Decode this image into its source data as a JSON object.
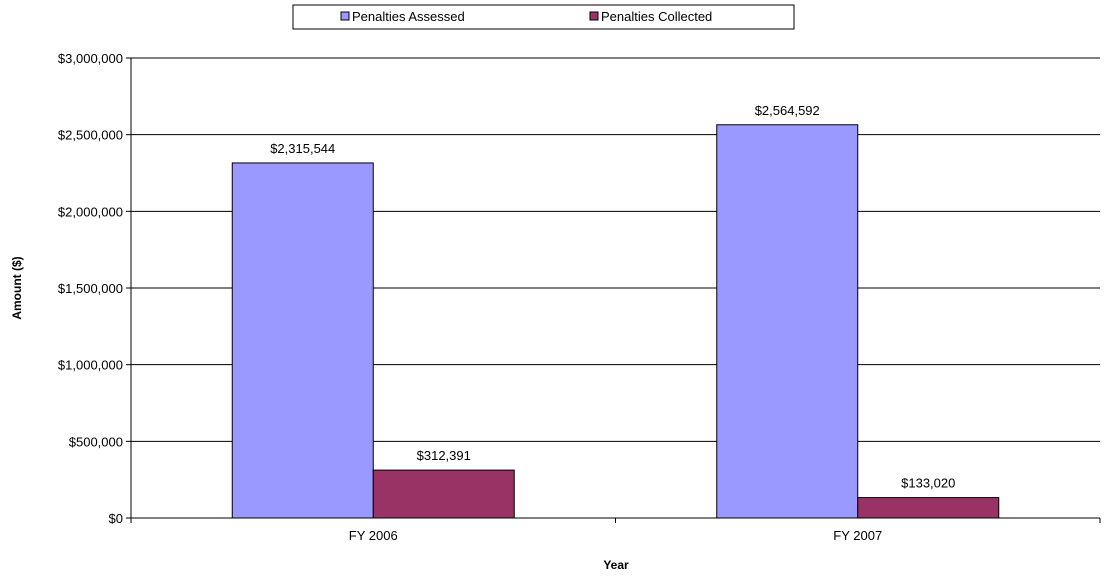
{
  "chart_data": {
    "type": "bar",
    "categories": [
      "FY 2006",
      "FY 2007"
    ],
    "series": [
      {
        "name": "Penalties Assessed",
        "values": [
          2315544,
          2564592
        ],
        "labels": [
          "$2,315,544",
          "$2,564,592"
        ],
        "color": "#9999ff"
      },
      {
        "name": "Penalties Collected",
        "values": [
          312391,
          133020
        ],
        "labels": [
          "$312,391",
          "$133,020"
        ],
        "color": "#993366"
      }
    ],
    "xlabel": "Year",
    "ylabel": "Amount ($)",
    "ylim": [
      0,
      3000000
    ],
    "yticks": [
      0,
      500000,
      1000000,
      1500000,
      2000000,
      2500000,
      3000000
    ],
    "ytick_labels": [
      "$0",
      "$500,000",
      "$1,000,000",
      "$1,500,000",
      "$2,000,000",
      "$2,500,000",
      "$3,000,000"
    ],
    "grid": true,
    "legend_position": "top-center"
  }
}
